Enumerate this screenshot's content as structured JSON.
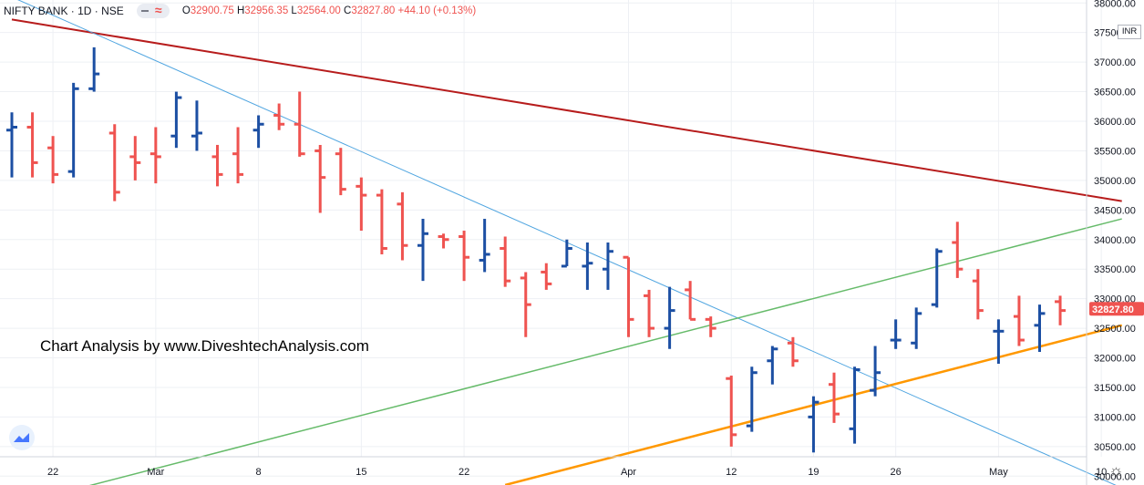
{
  "header": {
    "symbol": "NIFTY BANK · 1D · NSE",
    "ohlc": [
      {
        "k": "O",
        "v": "32900.75"
      },
      {
        "k": "H",
        "v": "32956.35"
      },
      {
        "k": "L",
        "v": "32564.00"
      },
      {
        "k": "C",
        "v": "32827.80"
      },
      {
        "k": "",
        "v": "+44.10 (+0.13%)"
      }
    ]
  },
  "watermark": "Chart Analysis by www.DiveshtechAnalysis.com",
  "currency": "INR",
  "last_price_label": "32827.80",
  "colors": {
    "up": "#1c4fa3",
    "down": "#ef5350",
    "grid": "#eef0f4",
    "axis_text": "#131722",
    "price_tag": "#ef5350"
  },
  "icons": [
    "tradingview-logo-icon",
    "settings-gear-icon"
  ],
  "chart_data": {
    "type": "ohlc",
    "y_ticks": [
      "30000.00",
      "30500.00",
      "31000.00",
      "31500.00",
      "32000.00",
      "32500.00",
      "33000.00",
      "33500.00",
      "34000.00",
      "34500.00",
      "35000.00",
      "35500.00",
      "36000.00",
      "36500.00",
      "37000.00",
      "37500.00",
      "38000.00"
    ],
    "ylim": [
      29850,
      38050
    ],
    "x_labels": [
      {
        "text": "22",
        "date": "2021-02-22"
      },
      {
        "text": "Mar",
        "date": "2021-03-01"
      },
      {
        "text": "8",
        "date": "2021-03-08"
      },
      {
        "text": "15",
        "date": "2021-03-15"
      },
      {
        "text": "22",
        "date": "2021-03-22"
      },
      {
        "text": "Apr",
        "date": "2021-04-01"
      },
      {
        "text": "12",
        "date": "2021-04-12"
      },
      {
        "text": "19",
        "date": "2021-04-19"
      },
      {
        "text": "26",
        "date": "2021-04-26"
      },
      {
        "text": "May",
        "date": "2021-05-03"
      },
      {
        "text": "10",
        "date": "2021-05-10"
      }
    ],
    "bars": [
      {
        "date": "2021-02-18",
        "o": 35850,
        "h": 36150,
        "l": 35050,
        "c": 35900
      },
      {
        "date": "2021-02-19",
        "o": 35900,
        "h": 36150,
        "l": 35050,
        "c": 35300
      },
      {
        "date": "2021-02-22",
        "o": 35550,
        "h": 35750,
        "l": 34950,
        "c": 35100
      },
      {
        "date": "2021-02-23",
        "o": 35150,
        "h": 36650,
        "l": 35050,
        "c": 36550
      },
      {
        "date": "2021-02-24",
        "o": 36550,
        "h": 37250,
        "l": 36500,
        "c": 36800
      },
      {
        "date": "2021-02-25",
        "o": 35800,
        "h": 35950,
        "l": 34650,
        "c": 34800
      },
      {
        "date": "2021-02-26",
        "o": 35400,
        "h": 35750,
        "l": 35000,
        "c": 35300
      },
      {
        "date": "2021-03-01",
        "o": 35450,
        "h": 35900,
        "l": 34950,
        "c": 35400
      },
      {
        "date": "2021-03-02",
        "o": 35750,
        "h": 36500,
        "l": 35550,
        "c": 36400
      },
      {
        "date": "2021-03-03",
        "o": 35750,
        "h": 36350,
        "l": 35500,
        "c": 35800
      },
      {
        "date": "2021-03-04",
        "o": 35400,
        "h": 35600,
        "l": 34900,
        "c": 35100
      },
      {
        "date": "2021-03-05",
        "o": 35450,
        "h": 35900,
        "l": 34950,
        "c": 35100
      },
      {
        "date": "2021-03-08",
        "o": 35850,
        "h": 36100,
        "l": 35550,
        "c": 35950
      },
      {
        "date": "2021-03-09",
        "o": 36100,
        "h": 36300,
        "l": 35850,
        "c": 35950
      },
      {
        "date": "2021-03-10",
        "o": 35950,
        "h": 36500,
        "l": 35400,
        "c": 35450
      },
      {
        "date": "2021-03-11",
        "o": 35500,
        "h": 35600,
        "l": 34450,
        "c": 35050
      },
      {
        "date": "2021-03-12",
        "o": 35450,
        "h": 35550,
        "l": 34750,
        "c": 34850
      },
      {
        "date": "2021-03-15",
        "o": 34900,
        "h": 35050,
        "l": 34150,
        "c": 34750
      },
      {
        "date": "2021-03-16",
        "o": 34750,
        "h": 34850,
        "l": 33750,
        "c": 33850
      },
      {
        "date": "2021-03-17",
        "o": 34600,
        "h": 34800,
        "l": 33650,
        "c": 33900
      },
      {
        "date": "2021-03-18",
        "o": 33900,
        "h": 34350,
        "l": 33300,
        "c": 34100
      },
      {
        "date": "2021-03-19",
        "o": 34050,
        "h": 34100,
        "l": 33850,
        "c": 34000
      },
      {
        "date": "2021-03-22",
        "o": 34050,
        "h": 34150,
        "l": 33300,
        "c": 33700
      },
      {
        "date": "2021-03-23",
        "o": 33650,
        "h": 34350,
        "l": 33450,
        "c": 33750
      },
      {
        "date": "2021-03-24",
        "o": 33850,
        "h": 34050,
        "l": 33200,
        "c": 33300
      },
      {
        "date": "2021-03-25",
        "o": 33350,
        "h": 33450,
        "l": 32350,
        "c": 32900
      },
      {
        "date": "2021-03-26",
        "o": 33450,
        "h": 33600,
        "l": 33150,
        "c": 33250
      },
      {
        "date": "2021-03-29",
        "o": 33550,
        "h": 34000,
        "l": 33550,
        "c": 33850
      },
      {
        "date": "2021-03-30",
        "o": 33550,
        "h": 33950,
        "l": 33150,
        "c": 33600
      },
      {
        "date": "2021-03-31",
        "o": 33500,
        "h": 33950,
        "l": 33150,
        "c": 33800
      },
      {
        "date": "2021-04-01",
        "o": 33700,
        "h": 33700,
        "l": 32350,
        "c": 32650
      },
      {
        "date": "2021-04-05",
        "o": 33050,
        "h": 33150,
        "l": 32350,
        "c": 32500
      },
      {
        "date": "2021-04-06",
        "o": 32500,
        "h": 33200,
        "l": 32150,
        "c": 32800
      },
      {
        "date": "2021-04-07",
        "o": 33150,
        "h": 33300,
        "l": 32650,
        "c": 32650
      },
      {
        "date": "2021-04-08",
        "o": 32650,
        "h": 32700,
        "l": 32350,
        "c": 32500
      },
      {
        "date": "2021-04-12",
        "o": 31650,
        "h": 31700,
        "l": 30500,
        "c": 30700
      },
      {
        "date": "2021-04-13",
        "o": 30850,
        "h": 31850,
        "l": 30750,
        "c": 31750
      },
      {
        "date": "2021-04-15",
        "o": 31950,
        "h": 32200,
        "l": 31550,
        "c": 32150
      },
      {
        "date": "2021-04-16",
        "o": 32250,
        "h": 32350,
        "l": 31850,
        "c": 31950
      },
      {
        "date": "2021-04-19",
        "o": 31000,
        "h": 31350,
        "l": 30400,
        "c": 31250
      },
      {
        "date": "2021-04-20",
        "o": 31550,
        "h": 31750,
        "l": 30900,
        "c": 31050
      },
      {
        "date": "2021-04-22",
        "o": 30800,
        "h": 31850,
        "l": 30550,
        "c": 31800
      },
      {
        "date": "2021-04-23",
        "o": 31450,
        "h": 32200,
        "l": 31350,
        "c": 31750
      },
      {
        "date": "2021-04-26",
        "o": 32300,
        "h": 32650,
        "l": 32150,
        "c": 32300
      },
      {
        "date": "2021-04-27",
        "o": 32250,
        "h": 32850,
        "l": 32150,
        "c": 32750
      },
      {
        "date": "2021-04-28",
        "o": 32900,
        "h": 33850,
        "l": 32850,
        "c": 33800
      },
      {
        "date": "2021-04-29",
        "o": 33950,
        "h": 34300,
        "l": 33350,
        "c": 33500
      },
      {
        "date": "2021-04-30",
        "o": 33300,
        "h": 33500,
        "l": 32650,
        "c": 32800
      },
      {
        "date": "2021-05-03",
        "o": 32450,
        "h": 32650,
        "l": 31900,
        "c": 32450
      },
      {
        "date": "2021-05-04",
        "o": 32700,
        "h": 33050,
        "l": 32200,
        "c": 32300
      },
      {
        "date": "2021-05-05",
        "o": 32550,
        "h": 32900,
        "l": 32100,
        "c": 32750
      },
      {
        "date": "2021-05-06",
        "o": 32950,
        "h": 33050,
        "l": 32550,
        "c": 32800
      }
    ],
    "trendlines": [
      {
        "name": "resistance-red",
        "color": "#b71c1c",
        "width": 2,
        "p1": {
          "date": "2021-02-18",
          "v": 37720
        },
        "p2": {
          "date": "2021-05-11",
          "v": 34650
        }
      },
      {
        "name": "falling-blue",
        "color": "#4fa5e0",
        "width": 1,
        "p1": {
          "date": "2021-02-18",
          "v": 38100
        },
        "p2": {
          "date": "2021-05-11",
          "v": 29800
        }
      },
      {
        "name": "rising-green",
        "color": "#66bb6a",
        "width": 1.5,
        "p1": {
          "date": "2021-02-18",
          "v": 29500
        },
        "p2": {
          "date": "2021-05-11",
          "v": 34350
        }
      },
      {
        "name": "support-orange",
        "color": "#ff9800",
        "width": 2.5,
        "p1": {
          "date": "2021-03-24",
          "v": 29850
        },
        "p2": {
          "date": "2021-05-11",
          "v": 32550
        }
      }
    ],
    "grid": true,
    "legend": "none"
  }
}
